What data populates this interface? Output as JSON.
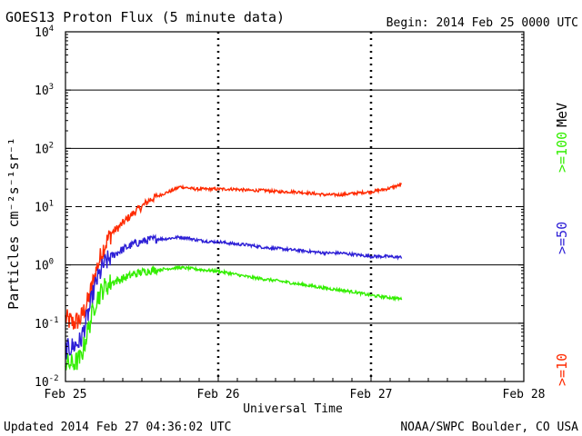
{
  "chart_data": {
    "type": "line",
    "title": "GOES13 Proton Flux (5 minute data)",
    "begin_label": "Begin: 2014 Feb 25 0000 UTC",
    "ylabel": "Particles cm⁻²s⁻¹sr⁻¹",
    "xlabel": "Universal Time",
    "y_scale": "log",
    "ylim": [
      0.01,
      10000
    ],
    "y_ticks": [
      {
        "value": 0.01,
        "base": "10",
        "exp": "-2"
      },
      {
        "value": 0.1,
        "base": "10",
        "exp": "-1"
      },
      {
        "value": 1,
        "base": "10",
        "exp": "0"
      },
      {
        "value": 10,
        "base": "10",
        "exp": "1"
      },
      {
        "value": 100,
        "base": "10",
        "exp": "2"
      },
      {
        "value": 1000,
        "base": "10",
        "exp": "3"
      },
      {
        "value": 10000,
        "base": "10",
        "exp": "4"
      }
    ],
    "xlim": [
      0,
      3
    ],
    "x_ticks": [
      {
        "value": 0,
        "label": "Feb 25"
      },
      {
        "value": 1,
        "label": "Feb 26"
      },
      {
        "value": 2,
        "label": "Feb 27"
      },
      {
        "value": 3,
        "label": "Feb 28"
      }
    ],
    "threshold_line": {
      "value": 10,
      "style": "dashed"
    },
    "legend_unit": "MeV",
    "series": [
      {
        "name": ">=10",
        "color": "#ff2a00",
        "x": [
          0,
          0.05,
          0.1,
          0.15,
          0.2,
          0.25,
          0.3,
          0.35,
          0.4,
          0.45,
          0.5,
          0.55,
          0.6,
          0.65,
          0.7,
          0.75,
          0.8,
          0.85,
          0.9,
          0.95,
          1.0,
          1.1,
          1.2,
          1.3,
          1.4,
          1.5,
          1.6,
          1.7,
          1.8,
          1.9,
          2.0,
          2.1,
          2.2
        ],
        "y": [
          0.12,
          0.1,
          0.12,
          0.25,
          0.8,
          2.0,
          3.5,
          4.5,
          6,
          8,
          10,
          13,
          15,
          17,
          19,
          22,
          21,
          20,
          20,
          20,
          20,
          20,
          19,
          19,
          18,
          18,
          17,
          16,
          16,
          17,
          18,
          20,
          24
        ]
      },
      {
        "name": ">=50",
        "color": "#2d1fd6",
        "x": [
          0,
          0.05,
          0.1,
          0.15,
          0.2,
          0.25,
          0.3,
          0.35,
          0.4,
          0.45,
          0.5,
          0.55,
          0.6,
          0.65,
          0.7,
          0.75,
          0.8,
          0.85,
          0.9,
          0.95,
          1.0,
          1.1,
          1.2,
          1.3,
          1.4,
          1.5,
          1.6,
          1.7,
          1.8,
          1.9,
          2.0,
          2.1,
          2.2
        ],
        "y": [
          0.035,
          0.04,
          0.05,
          0.15,
          0.5,
          1.0,
          1.4,
          1.7,
          2.0,
          2.3,
          2.5,
          2.7,
          2.8,
          2.8,
          2.9,
          3.0,
          2.9,
          2.7,
          2.6,
          2.5,
          2.5,
          2.3,
          2.2,
          2.0,
          1.9,
          1.8,
          1.7,
          1.6,
          1.6,
          1.5,
          1.4,
          1.4,
          1.35
        ]
      },
      {
        "name": ">=100",
        "color": "#33ee00",
        "x": [
          0,
          0.05,
          0.1,
          0.15,
          0.2,
          0.25,
          0.3,
          0.35,
          0.4,
          0.45,
          0.5,
          0.55,
          0.6,
          0.65,
          0.7,
          0.75,
          0.8,
          0.85,
          0.9,
          0.95,
          1.0,
          1.1,
          1.2,
          1.3,
          1.4,
          1.5,
          1.6,
          1.7,
          1.8,
          1.9,
          2.0,
          2.1,
          2.2
        ],
        "y": [
          0.02,
          0.02,
          0.025,
          0.08,
          0.25,
          0.4,
          0.5,
          0.55,
          0.62,
          0.7,
          0.75,
          0.8,
          0.82,
          0.85,
          0.88,
          0.9,
          0.88,
          0.85,
          0.82,
          0.8,
          0.78,
          0.7,
          0.62,
          0.57,
          0.53,
          0.48,
          0.44,
          0.4,
          0.37,
          0.34,
          0.3,
          0.28,
          0.26
        ]
      }
    ],
    "footer_left": "Updated 2014 Feb 27 04:36:02 UTC",
    "footer_right": "NOAA/SWPC Boulder, CO USA"
  }
}
